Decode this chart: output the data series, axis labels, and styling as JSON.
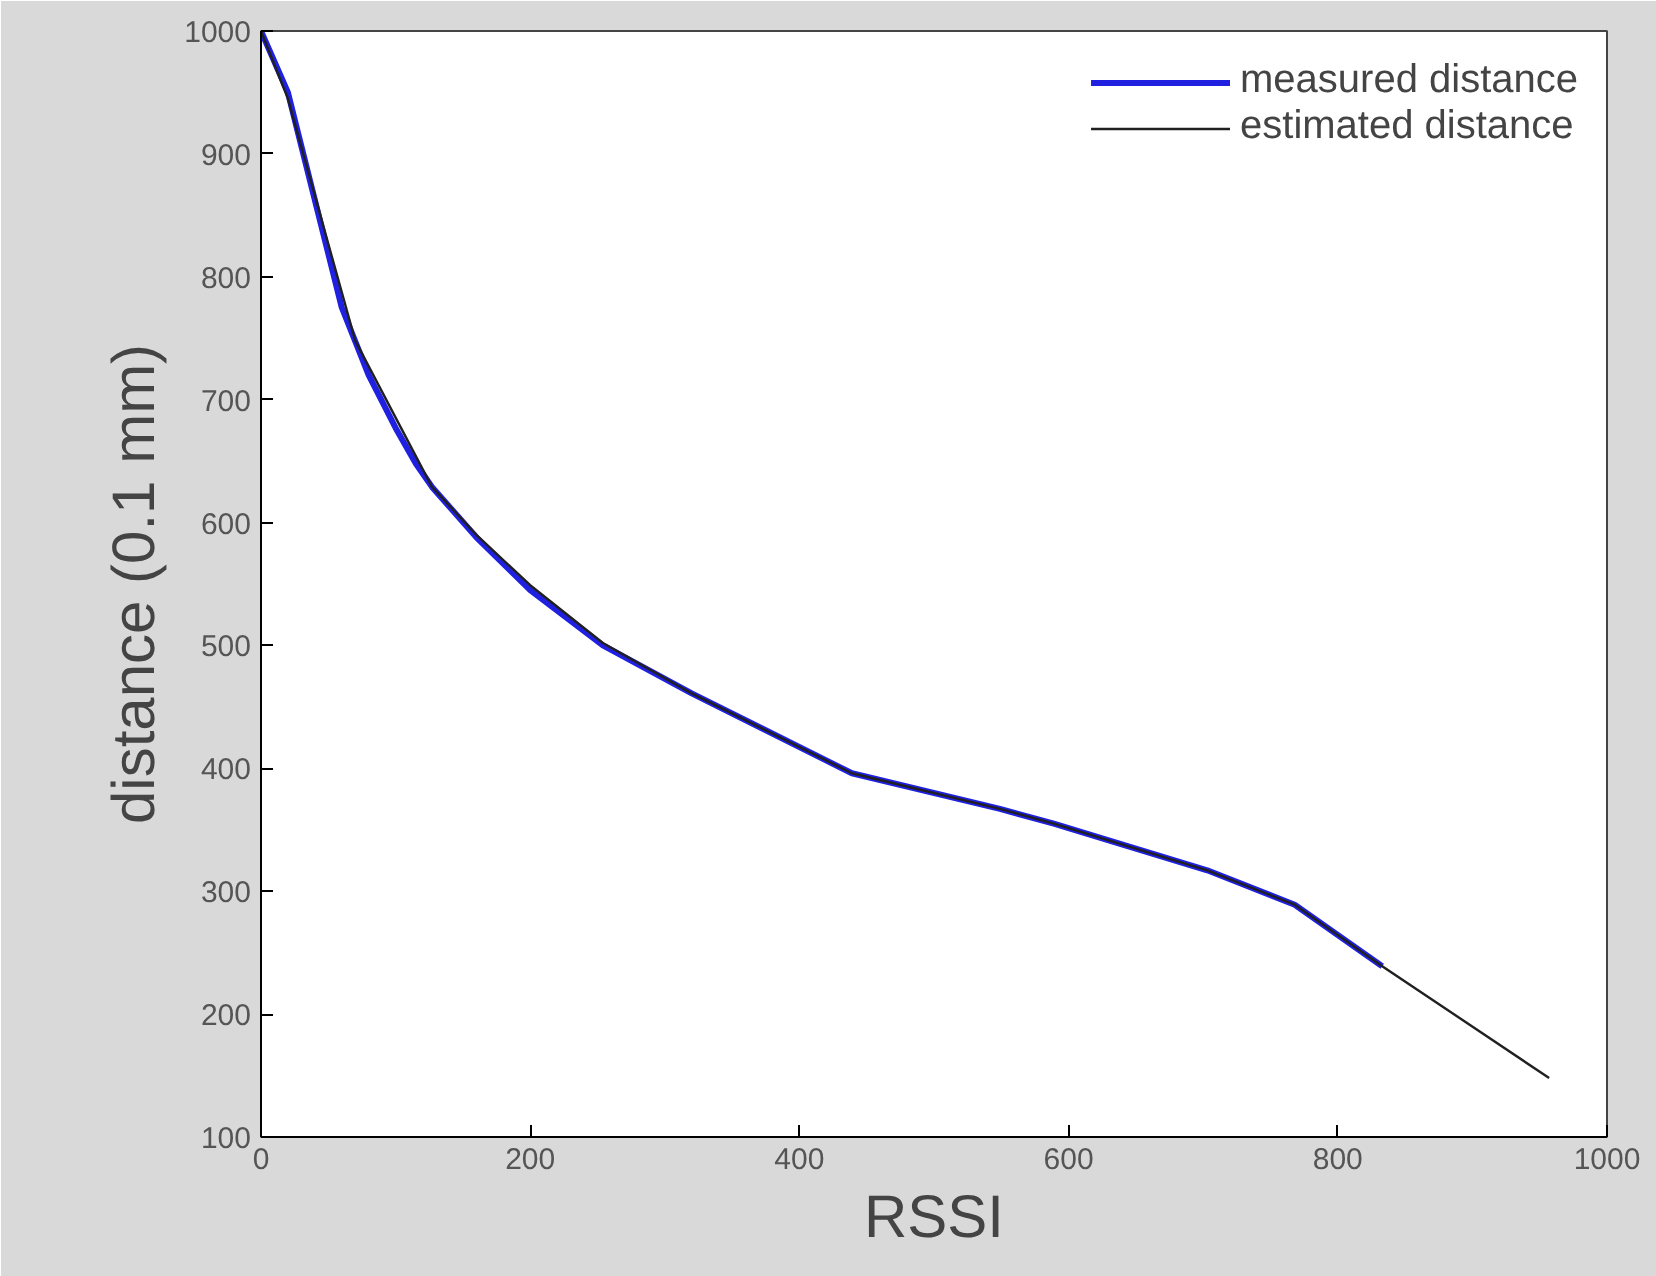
{
  "chart_data": {
    "type": "line",
    "xlabel": "RSSI",
    "ylabel": "distance (0.1 mm)",
    "xlim": [
      0,
      1000
    ],
    "ylim": [
      100,
      1000
    ],
    "xticks": [
      0,
      200,
      400,
      600,
      800,
      1000
    ],
    "yticks": [
      100,
      200,
      300,
      400,
      500,
      600,
      700,
      800,
      900,
      1000
    ],
    "grid": false,
    "legend": "top right",
    "marker": "none",
    "line_style": "solid",
    "series": [
      {
        "name": "measured distance",
        "color": "#2020e0",
        "x": [
          0,
          20,
          60,
          80,
          100,
          115,
          127,
          160,
          200,
          254,
          320,
          439,
          549,
          589,
          703,
          768,
          833
        ],
        "values": [
          1000,
          950,
          775,
          720,
          677,
          648,
          629,
          588,
          545,
          500,
          461,
          396,
          367,
          355,
          317,
          289,
          239
        ]
      },
      {
        "name": "estimated distance",
        "color": "#202020",
        "x": [
          0,
          20,
          70,
          127,
          160,
          200,
          254,
          320,
          439,
          549,
          589,
          703,
          768,
          833,
          957
        ],
        "values": [
          1000,
          945,
          748,
          629,
          590,
          549,
          502,
          461,
          396,
          367,
          355,
          317,
          289,
          239,
          148
        ]
      }
    ]
  }
}
